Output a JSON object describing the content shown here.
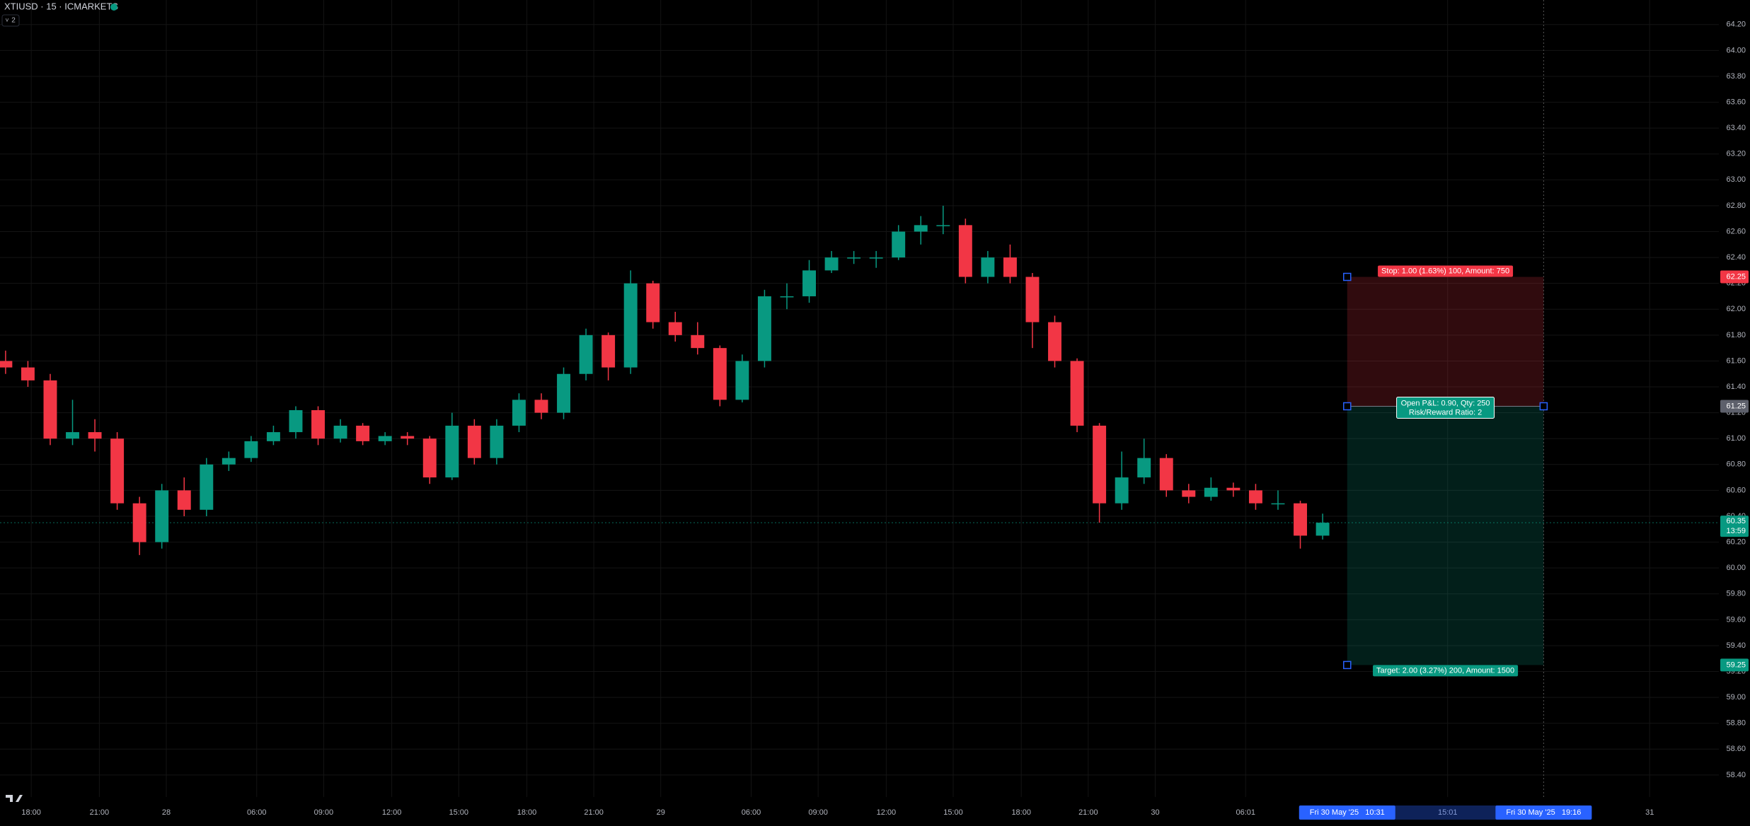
{
  "chart_data": {
    "type": "candlestick",
    "symbol": "XTIUSD · 15 · ICMARKETS",
    "collapse_label": "2",
    "up_color": "#089981",
    "down_color": "#f23645",
    "open": [
      61.6,
      61.55,
      61.45,
      61.0,
      61.05,
      61.0,
      60.5,
      60.2,
      60.6,
      60.45,
      60.8,
      60.85,
      60.98,
      61.05,
      61.22,
      61.0,
      61.1,
      60.98,
      61.02,
      61.0,
      60.7,
      61.1,
      60.85,
      61.1,
      61.3,
      61.2,
      61.5,
      61.8,
      61.55,
      62.2,
      61.9,
      61.8,
      61.7,
      61.3,
      61.6,
      62.1,
      62.1,
      62.3,
      62.4,
      62.4,
      62.4,
      62.6,
      62.65,
      62.65,
      62.25,
      62.4,
      62.25,
      61.9,
      61.6,
      61.1,
      60.5,
      60.7,
      60.85,
      60.6,
      60.55,
      60.62,
      60.6,
      60.5,
      60.5,
      60.25
    ],
    "high": [
      61.68,
      61.6,
      61.5,
      61.3,
      61.15,
      61.05,
      60.55,
      60.65,
      60.7,
      60.85,
      60.9,
      61.02,
      61.1,
      61.25,
      61.25,
      61.15,
      61.12,
      61.05,
      61.05,
      61.02,
      61.2,
      61.15,
      61.15,
      61.35,
      61.35,
      61.55,
      61.85,
      61.82,
      62.3,
      62.22,
      61.98,
      61.9,
      61.72,
      61.65,
      62.15,
      62.2,
      62.38,
      62.45,
      62.45,
      62.45,
      62.65,
      62.72,
      62.8,
      62.7,
      62.45,
      62.5,
      62.28,
      61.95,
      61.62,
      61.12,
      60.9,
      61.0,
      60.88,
      60.65,
      60.7,
      60.66,
      60.65,
      60.6,
      60.52,
      60.42
    ],
    "low": [
      61.5,
      61.4,
      60.95,
      60.95,
      60.9,
      60.45,
      60.1,
      60.15,
      60.4,
      60.4,
      60.75,
      60.82,
      60.95,
      61.0,
      60.95,
      60.97,
      60.95,
      60.95,
      60.95,
      60.65,
      60.68,
      60.8,
      60.8,
      61.05,
      61.15,
      61.15,
      61.45,
      61.45,
      61.5,
      61.85,
      61.75,
      61.65,
      61.25,
      61.28,
      61.55,
      62.0,
      62.05,
      62.28,
      62.35,
      62.32,
      62.38,
      62.5,
      62.58,
      62.2,
      62.2,
      62.2,
      61.7,
      61.55,
      61.05,
      60.35,
      60.45,
      60.65,
      60.55,
      60.5,
      60.52,
      60.55,
      60.45,
      60.45,
      60.15,
      60.22
    ],
    "close": [
      61.55,
      61.45,
      61.0,
      61.05,
      61.0,
      60.5,
      60.2,
      60.6,
      60.45,
      60.8,
      60.85,
      60.98,
      61.05,
      61.22,
      61.0,
      61.1,
      60.98,
      61.02,
      61.0,
      60.7,
      61.1,
      60.85,
      61.1,
      61.3,
      61.2,
      61.5,
      61.8,
      61.55,
      62.2,
      61.9,
      61.8,
      61.7,
      61.3,
      61.6,
      62.1,
      62.1,
      62.3,
      62.4,
      62.4,
      62.4,
      62.6,
      62.65,
      62.65,
      62.25,
      62.4,
      62.25,
      61.9,
      61.6,
      61.1,
      60.5,
      60.7,
      60.85,
      60.6,
      60.55,
      60.62,
      60.6,
      60.5,
      60.5,
      60.25,
      60.35
    ],
    "xlim": [
      -0.25,
      76.75
    ],
    "xticks": [
      {
        "value": 1.15,
        "label": "18:00"
      },
      {
        "value": 4.2,
        "label": "21:00"
      },
      {
        "value": 7.2,
        "label": "28"
      },
      {
        "value": 11.25,
        "label": "06:00"
      },
      {
        "value": 14.25,
        "label": "09:00"
      },
      {
        "value": 17.3,
        "label": "12:00"
      },
      {
        "value": 20.3,
        "label": "15:00"
      },
      {
        "value": 23.35,
        "label": "18:00"
      },
      {
        "value": 26.35,
        "label": "21:00"
      },
      {
        "value": 29.35,
        "label": "29"
      },
      {
        "value": 33.4,
        "label": "06:00"
      },
      {
        "value": 36.4,
        "label": "09:00"
      },
      {
        "value": 39.45,
        "label": "12:00"
      },
      {
        "value": 42.45,
        "label": "15:00"
      },
      {
        "value": 45.5,
        "label": "18:00"
      },
      {
        "value": 48.5,
        "label": "21:00"
      },
      {
        "value": 51.5,
        "label": "30"
      },
      {
        "value": 55.55,
        "label": "06:01"
      },
      {
        "value": 64.6,
        "label": "15:01"
      },
      {
        "value": 73.65,
        "label": "31"
      }
    ],
    "ylim": [
      58.23,
      64.39
    ],
    "yticks": [
      {
        "value": 58.4,
        "label": "58.40"
      },
      {
        "value": 58.6,
        "label": "58.60"
      },
      {
        "value": 58.8,
        "label": "58.80"
      },
      {
        "value": 59.0,
        "label": "59.00"
      },
      {
        "value": 59.2,
        "label": "59.20"
      },
      {
        "value": 59.4,
        "label": "59.40"
      },
      {
        "value": 59.6,
        "label": "59.60"
      },
      {
        "value": 59.8,
        "label": "59.80"
      },
      {
        "value": 60.0,
        "label": "60.00"
      },
      {
        "value": 60.2,
        "label": "60.20"
      },
      {
        "value": 60.4,
        "label": "60.40"
      },
      {
        "value": 60.6,
        "label": "60.60"
      },
      {
        "value": 60.8,
        "label": "60.80"
      },
      {
        "value": 61.0,
        "label": "61.00"
      },
      {
        "value": 61.2,
        "label": "61.20"
      },
      {
        "value": 61.4,
        "label": "61.40"
      },
      {
        "value": 61.6,
        "label": "61.60"
      },
      {
        "value": 61.8,
        "label": "61.80"
      },
      {
        "value": 62.0,
        "label": "62.00"
      },
      {
        "value": 62.2,
        "label": "62.20"
      },
      {
        "value": 62.4,
        "label": "62.40"
      },
      {
        "value": 62.6,
        "label": "62.60"
      },
      {
        "value": 62.8,
        "label": "62.80"
      },
      {
        "value": 63.0,
        "label": "63.00"
      },
      {
        "value": 63.2,
        "label": "63.20"
      },
      {
        "value": 63.4,
        "label": "63.40"
      },
      {
        "value": 63.6,
        "label": "63.60"
      },
      {
        "value": 63.8,
        "label": "63.80"
      },
      {
        "value": 64.0,
        "label": "64.00"
      },
      {
        "value": 64.2,
        "label": "64.20"
      }
    ],
    "grid": true,
    "last_price": 60.35,
    "countdown": "13:59",
    "position": {
      "entry": 61.25,
      "stop": 62.25,
      "target": 59.25,
      "start": 60.1,
      "end": 68.9,
      "stop_label": "Stop: 1.00 (1.63%) 100, Amount: 750",
      "pnl_label": "Open P&L: 0.90, Qty: 250",
      "ratio_label": "Risk/Reward Ratio: 2",
      "target_label": "Target: 2.00 (3.27%) 200, Amount: 1500",
      "start_time_label": "Fri 30 May '25   10:31",
      "end_time_label": "Fri 30 May '25   19:16"
    }
  }
}
